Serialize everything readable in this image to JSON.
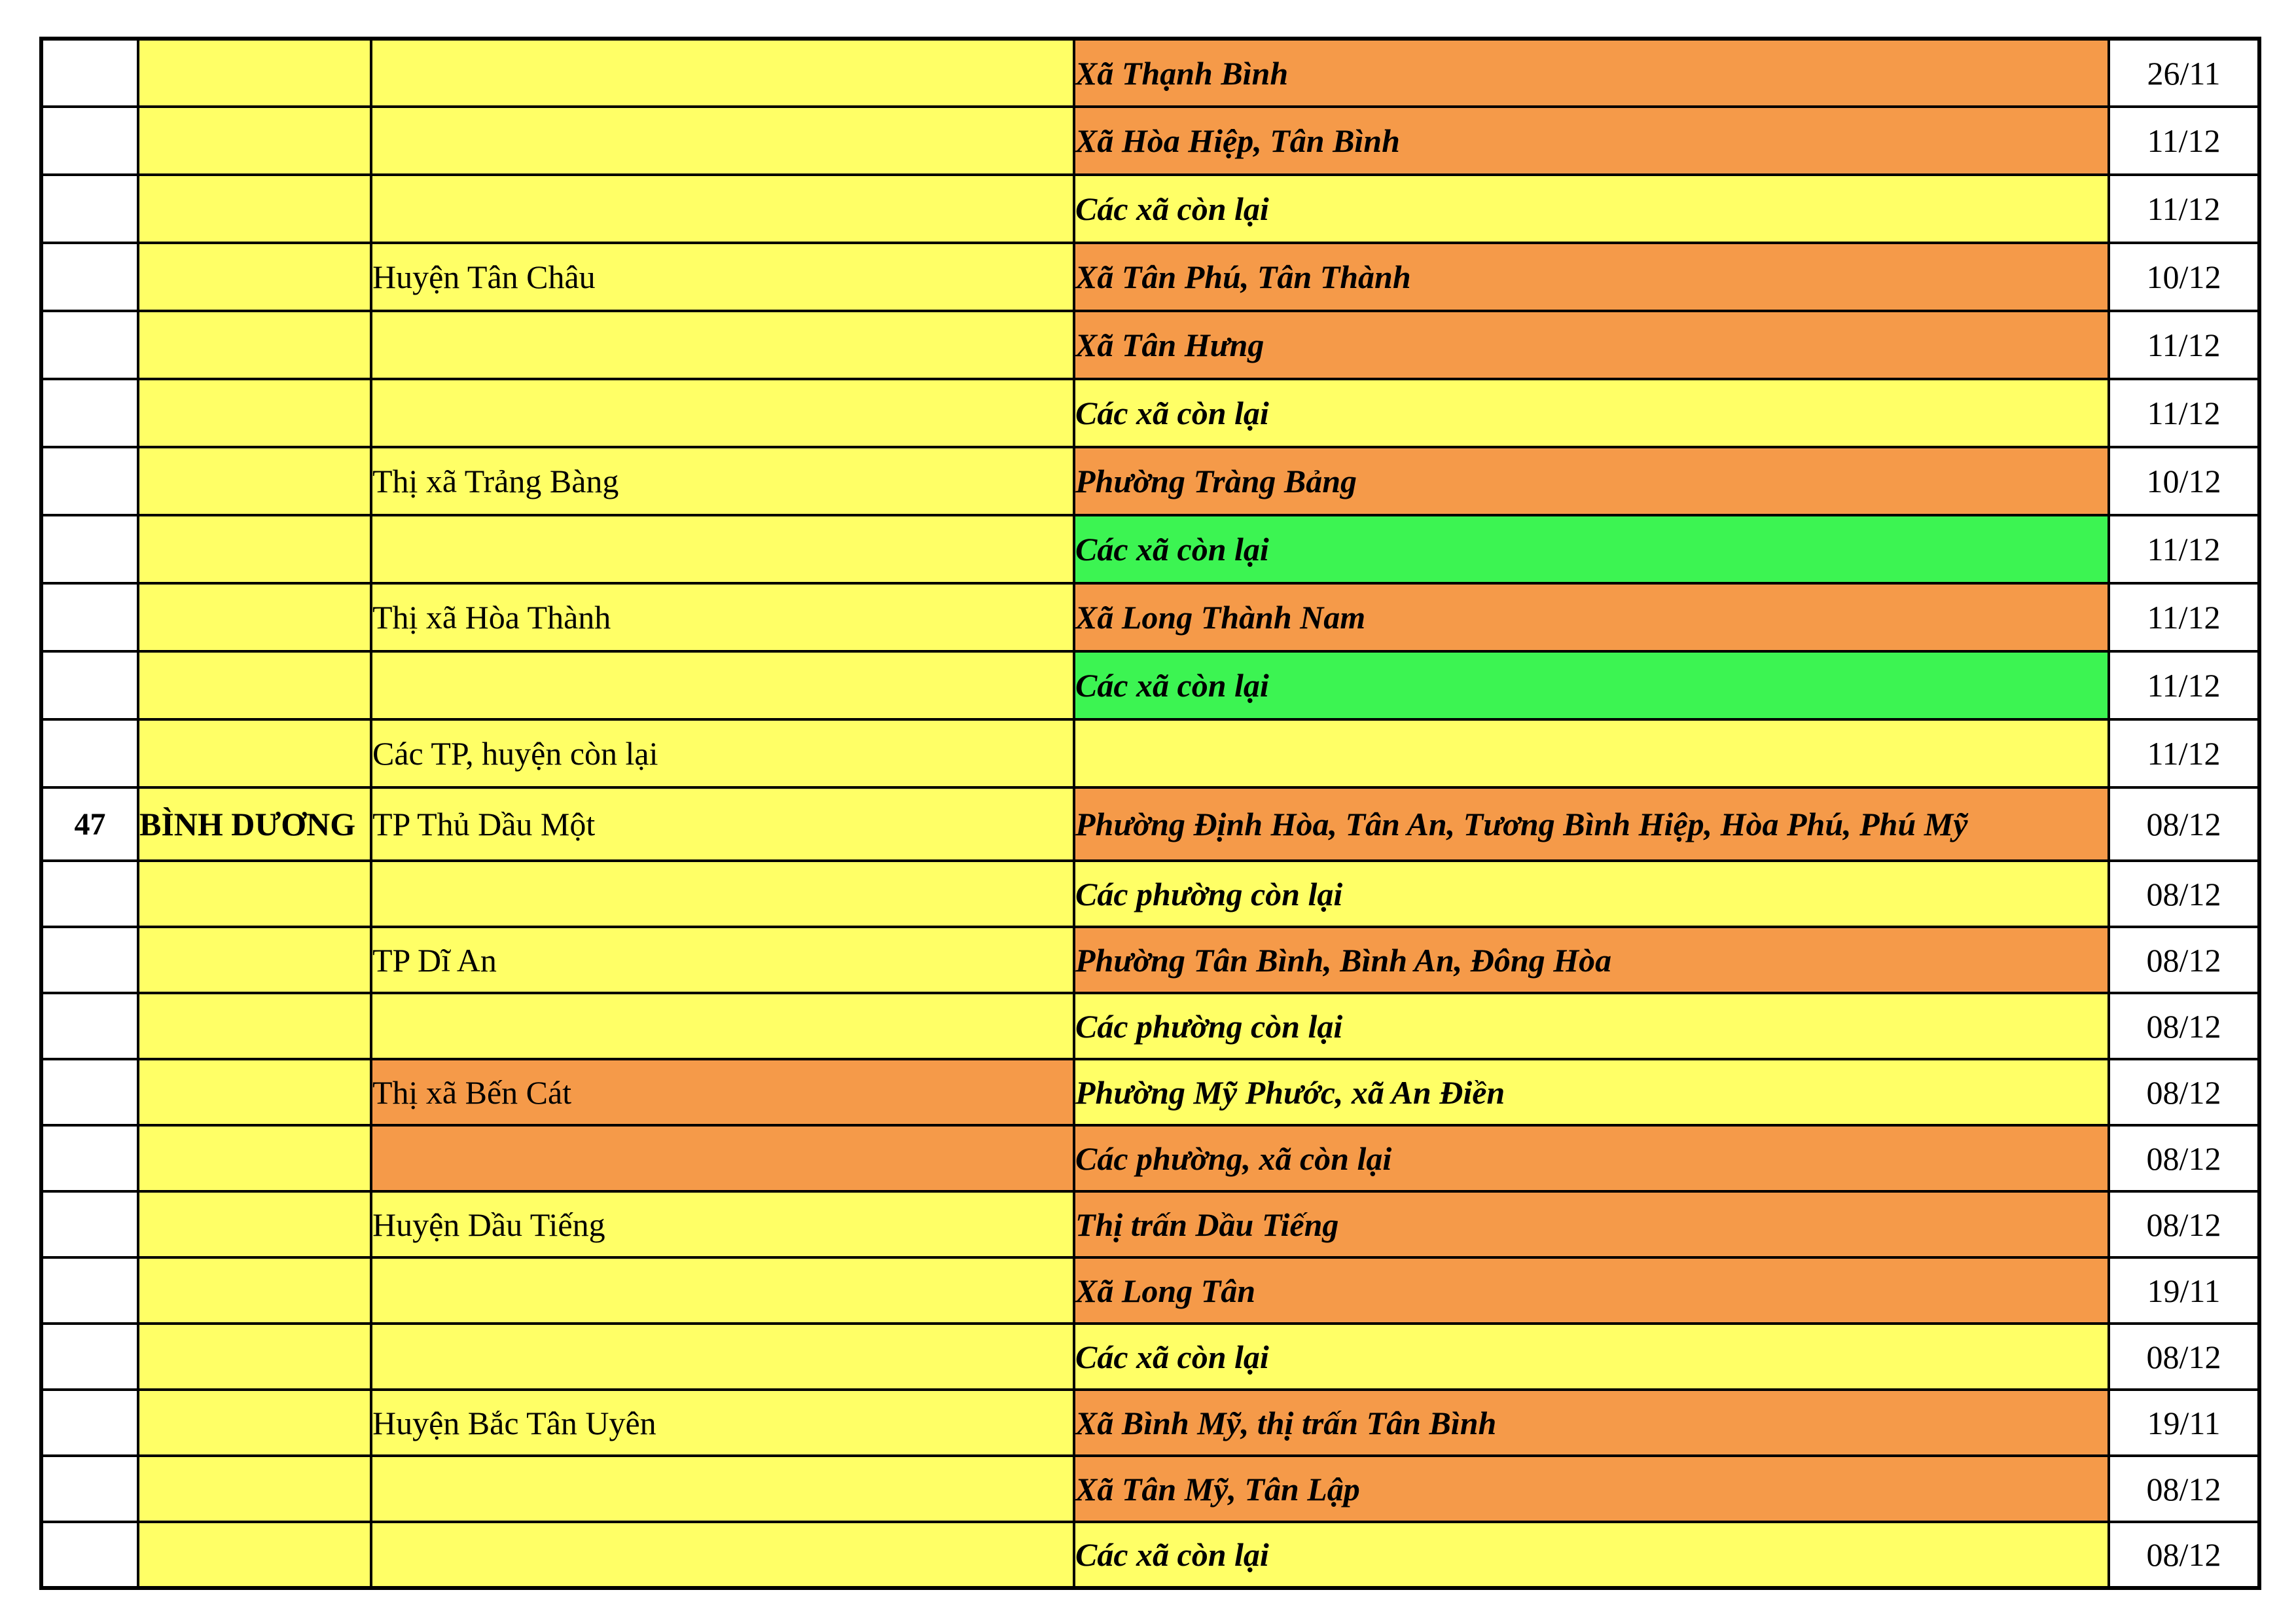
{
  "palette": {
    "yellow": "#FFFF66",
    "orange": "#F59A49",
    "green": "#3CF452",
    "white": "#FFFFFF",
    "grid": "#000000",
    "text": "#000000"
  },
  "table": {
    "rows": [
      {
        "no": "",
        "province": "",
        "district": "",
        "district_bg": "yellow",
        "commune": "Xã Thạnh Bình",
        "commune_bg": "orange",
        "date": "26/11"
      },
      {
        "no": "",
        "province": "",
        "district": "",
        "district_bg": "yellow",
        "commune": "Xã Hòa Hiệp, Tân Bình",
        "commune_bg": "orange",
        "date": "11/12"
      },
      {
        "no": "",
        "province": "",
        "district": "",
        "district_bg": "yellow",
        "commune": "Các xã còn lại",
        "commune_bg": "yellow",
        "date": "11/12"
      },
      {
        "no": "",
        "province": "",
        "district": "Huyện Tân Châu",
        "district_bg": "yellow",
        "commune": "Xã Tân Phú, Tân Thành",
        "commune_bg": "orange",
        "date": "10/12"
      },
      {
        "no": "",
        "province": "",
        "district": "",
        "district_bg": "yellow",
        "commune": "Xã Tân Hưng",
        "commune_bg": "orange",
        "date": "11/12"
      },
      {
        "no": "",
        "province": "",
        "district": "",
        "district_bg": "yellow",
        "commune": "Các xã còn lại",
        "commune_bg": "yellow",
        "date": "11/12"
      },
      {
        "no": "",
        "province": "",
        "district": "Thị xã Trảng Bàng",
        "district_bg": "yellow",
        "commune": "Phường Tràng Bảng",
        "commune_bg": "orange",
        "date": "10/12"
      },
      {
        "no": "",
        "province": "",
        "district": "",
        "district_bg": "yellow",
        "commune": "Các xã còn lại",
        "commune_bg": "green",
        "date": "11/12"
      },
      {
        "no": "",
        "province": "",
        "district": "Thị xã Hòa Thành",
        "district_bg": "yellow",
        "commune": "Xã Long Thành Nam",
        "commune_bg": "orange",
        "date": "11/12"
      },
      {
        "no": "",
        "province": "",
        "district": "",
        "district_bg": "yellow",
        "commune": "Các xã còn lại",
        "commune_bg": "green",
        "date": "11/12"
      },
      {
        "no": "",
        "province": "",
        "district": "Các TP, huyện còn lại",
        "district_bg": "yellow",
        "commune": "",
        "commune_bg": "yellow",
        "date": "11/12"
      },
      {
        "no": "47",
        "province": "BÌNH DƯƠNG",
        "district": "TP Thủ Dầu Một",
        "district_bg": "yellow",
        "commune": "Phường Định Hòa, Tân An, Tương Bình Hiệp, Hòa Phú, Phú Mỹ",
        "commune_bg": "orange",
        "date": "08/12"
      },
      {
        "no": "",
        "province": "",
        "district": "",
        "district_bg": "yellow",
        "commune": "Các phường còn lại",
        "commune_bg": "yellow",
        "date": "08/12"
      },
      {
        "no": "",
        "province": "",
        "district": "TP Dĩ An",
        "district_bg": "yellow",
        "commune": "Phường Tân Bình, Bình An, Đông Hòa",
        "commune_bg": "orange",
        "date": "08/12"
      },
      {
        "no": "",
        "province": "",
        "district": "",
        "district_bg": "yellow",
        "commune": "Các phường còn lại",
        "commune_bg": "yellow",
        "date": "08/12"
      },
      {
        "no": "",
        "province": "",
        "district": "Thị xã Bến Cát",
        "district_bg": "orange",
        "commune": "Phường Mỹ Phước, xã An Điền",
        "commune_bg": "yellow",
        "date": "08/12"
      },
      {
        "no": "",
        "province": "",
        "district": "",
        "district_bg": "orange",
        "commune": "Các phường, xã còn lại",
        "commune_bg": "orange",
        "date": "08/12"
      },
      {
        "no": "",
        "province": "",
        "district": "Huyện Dầu Tiếng",
        "district_bg": "yellow",
        "commune": "Thị trấn Dầu Tiếng",
        "commune_bg": "orange",
        "date": "08/12"
      },
      {
        "no": "",
        "province": "",
        "district": "",
        "district_bg": "yellow",
        "commune": "Xã Long Tân",
        "commune_bg": "orange",
        "date": "19/11"
      },
      {
        "no": "",
        "province": "",
        "district": "",
        "district_bg": "yellow",
        "commune": "Các xã còn lại",
        "commune_bg": "yellow",
        "date": "08/12"
      },
      {
        "no": "",
        "province": "",
        "district": "Huyện Bắc Tân Uyên",
        "district_bg": "yellow",
        "commune": "Xã Bình Mỹ, thị trấn Tân Bình",
        "commune_bg": "orange",
        "date": "19/11"
      },
      {
        "no": "",
        "province": "",
        "district": "",
        "district_bg": "yellow",
        "commune": "Xã Tân Mỹ, Tân Lập",
        "commune_bg": "orange",
        "date": "08/12"
      },
      {
        "no": "",
        "province": "",
        "district": "",
        "district_bg": "yellow",
        "commune": "Các xã còn lại",
        "commune_bg": "yellow",
        "date": "08/12"
      }
    ]
  }
}
